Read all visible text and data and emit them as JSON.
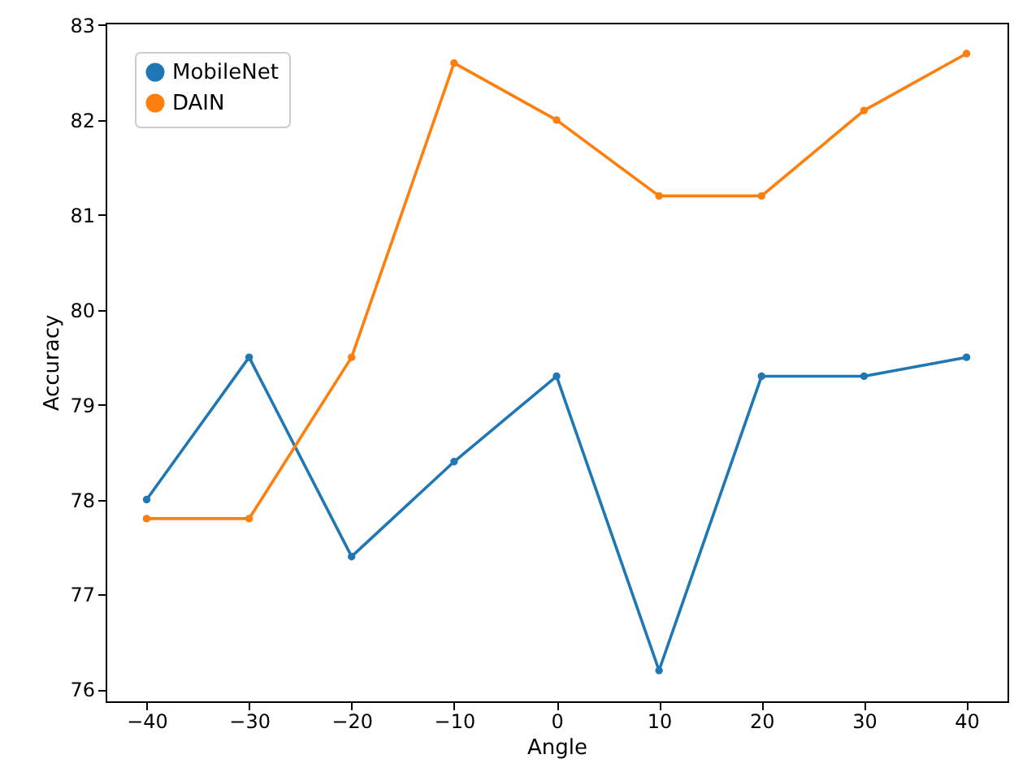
{
  "chart_data": {
    "type": "line",
    "xlabel": "Angle",
    "ylabel": "Accuracy",
    "x": [
      -40,
      -30,
      -20,
      -10,
      0,
      10,
      20,
      30,
      40
    ],
    "xlim": [
      -44,
      44
    ],
    "xticks": [
      -40,
      -30,
      -20,
      -10,
      0,
      10,
      20,
      30,
      40
    ],
    "ylim": [
      75.875,
      83.025
    ],
    "yticks": [
      76,
      77,
      78,
      79,
      80,
      81,
      82,
      83
    ],
    "series": [
      {
        "name": "MobileNet",
        "color": "#1f77b4",
        "values": [
          78,
          79.5,
          77.4,
          78.4,
          79.3,
          76.2,
          79.3,
          79.3,
          79.5
        ]
      },
      {
        "name": "DAIN",
        "color": "#ff7f0e",
        "values": [
          77.8,
          77.8,
          79.5,
          82.6,
          82,
          81.2,
          81.2,
          82.1,
          82.7
        ]
      }
    ],
    "legend": "top left",
    "marker": "circle",
    "line_style": "solid",
    "grid": false
  }
}
